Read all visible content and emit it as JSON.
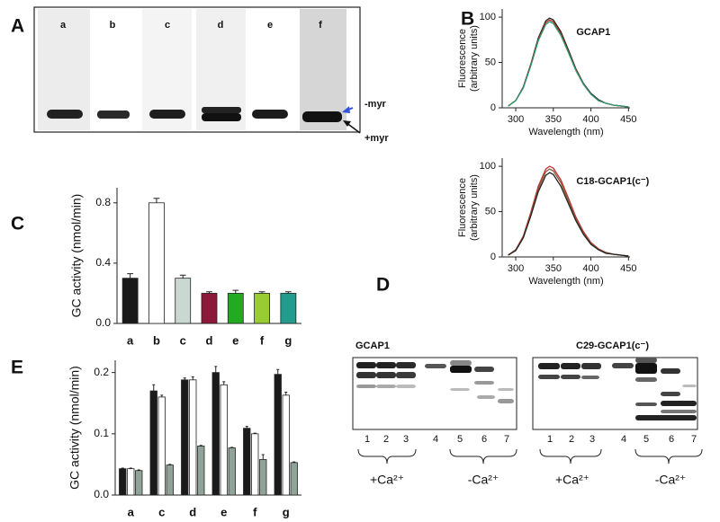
{
  "panel_labels": [
    "A",
    "B",
    "C",
    "D",
    "E"
  ],
  "gel_a": {
    "lanes": [
      "a",
      "b",
      "c",
      "d",
      "e",
      "f"
    ],
    "markers": [
      "-myr",
      "+myr"
    ]
  },
  "blot_d": {
    "titles": [
      "GCAP1",
      "C29-GCAP1(c⁻)"
    ],
    "lanes": [
      "1",
      "2",
      "3",
      "4",
      "5",
      "6",
      "7"
    ],
    "conditions": [
      "+Ca²⁺",
      "-Ca²⁺"
    ]
  },
  "chart_data": [
    {
      "type": "line",
      "title": "GCAP1",
      "ylabel": [
        "Fluorescence",
        "(arbitrary units)"
      ],
      "xlabel": "Wavelength (nm)",
      "x": [
        290,
        300,
        310,
        320,
        330,
        340,
        345,
        350,
        360,
        370,
        380,
        390,
        400,
        410,
        420,
        430,
        440,
        450
      ],
      "series": [
        {
          "color": "#222222",
          "values": [
            2,
            8,
            23,
            48,
            77,
            96,
            99,
            97,
            84,
            64,
            43,
            27,
            16,
            9,
            5,
            3,
            2,
            1
          ]
        },
        {
          "color": "#b03020",
          "values": [
            2,
            8,
            22,
            47,
            75,
            94,
            97,
            95,
            82,
            62,
            42,
            26,
            15,
            8,
            5,
            3,
            2,
            1
          ]
        },
        {
          "color": "#2a9a70",
          "values": [
            2,
            8,
            22,
            46,
            74,
            92,
            95,
            93,
            80,
            61,
            41,
            26,
            15,
            8,
            5,
            3,
            2,
            1
          ]
        }
      ],
      "xlim": [
        282,
        452
      ],
      "ylim": [
        0,
        109
      ],
      "xticks": [
        300,
        350,
        400,
        450
      ],
      "yticks": [
        0,
        50,
        100
      ]
    },
    {
      "type": "line",
      "title": "C18-GCAP1(c⁻)",
      "ylabel": [
        "Fluorescence",
        "(arbitrary units)"
      ],
      "xlabel": "Wavelength (nm)",
      "x": [
        290,
        300,
        310,
        320,
        330,
        340,
        345,
        350,
        360,
        370,
        380,
        390,
        400,
        410,
        420,
        430,
        440,
        450
      ],
      "series": [
        {
          "color": "#c03030",
          "values": [
            2,
            8,
            23,
            49,
            78,
            97,
            100,
            98,
            85,
            65,
            44,
            28,
            16,
            9,
            5,
            3,
            2,
            1
          ]
        },
        {
          "color": "#8a5a3a",
          "values": [
            2,
            8,
            22,
            47,
            75,
            94,
            97,
            95,
            82,
            62,
            42,
            26,
            15,
            8,
            5,
            3,
            2,
            1
          ]
        },
        {
          "color": "#222222",
          "values": [
            2,
            7,
            21,
            45,
            72,
            90,
            93,
            91,
            78,
            59,
            40,
            25,
            14,
            8,
            4,
            3,
            2,
            1
          ]
        }
      ],
      "xlim": [
        282,
        452
      ],
      "ylim": [
        0,
        109
      ],
      "xticks": [
        300,
        350,
        400,
        450
      ],
      "yticks": [
        0,
        50,
        100
      ]
    },
    {
      "type": "bar",
      "ylabel": "GC activity (nmol/min)",
      "categories": [
        "a",
        "b",
        "c",
        "d",
        "e",
        "f",
        "g"
      ],
      "values": [
        0.3,
        0.8,
        0.3,
        0.2,
        0.2,
        0.2,
        0.2
      ],
      "errors": [
        0.03,
        0.03,
        0.02,
        0.01,
        0.02,
        0.01,
        0.01
      ],
      "colors": [
        "#1a1a1a",
        "#ffffff",
        "#c9d8d0",
        "#8b1a3a",
        "#22aa22",
        "#99cc33",
        "#229c8c"
      ],
      "ylim": [
        0,
        0.9
      ],
      "yticks": [
        {
          "value": 0,
          "label": "0.0"
        },
        0.4,
        0.8
      ]
    },
    {
      "type": "bar",
      "ylabel": "GC activity (nmol/min)",
      "categories": [
        "a",
        "c",
        "d",
        "e",
        "f",
        "g"
      ],
      "series": [
        {
          "color": "#1a1a1a",
          "values": [
            0.043,
            0.17,
            0.188,
            0.2,
            0.109,
            0.197
          ],
          "errors": [
            0.001,
            0.01,
            0.003,
            0.01,
            0.003,
            0.008
          ]
        },
        {
          "color": "#ffffff",
          "values": [
            0.043,
            0.16,
            0.188,
            0.18,
            0.1,
            0.163
          ],
          "errors": [
            0.001,
            0.003,
            0.005,
            0.005,
            0.001,
            0.005
          ]
        },
        {
          "color": "#8fa398",
          "values": [
            0.04,
            0.049,
            0.08,
            0.077,
            0.058,
            0.053
          ],
          "errors": [
            0.001,
            0.001,
            0.001,
            0.001,
            0.008,
            0.001
          ]
        }
      ],
      "ylim": [
        0,
        0.22
      ],
      "yticks": [
        {
          "value": 0,
          "label": "0.0"
        },
        0.1,
        0.2
      ]
    }
  ]
}
